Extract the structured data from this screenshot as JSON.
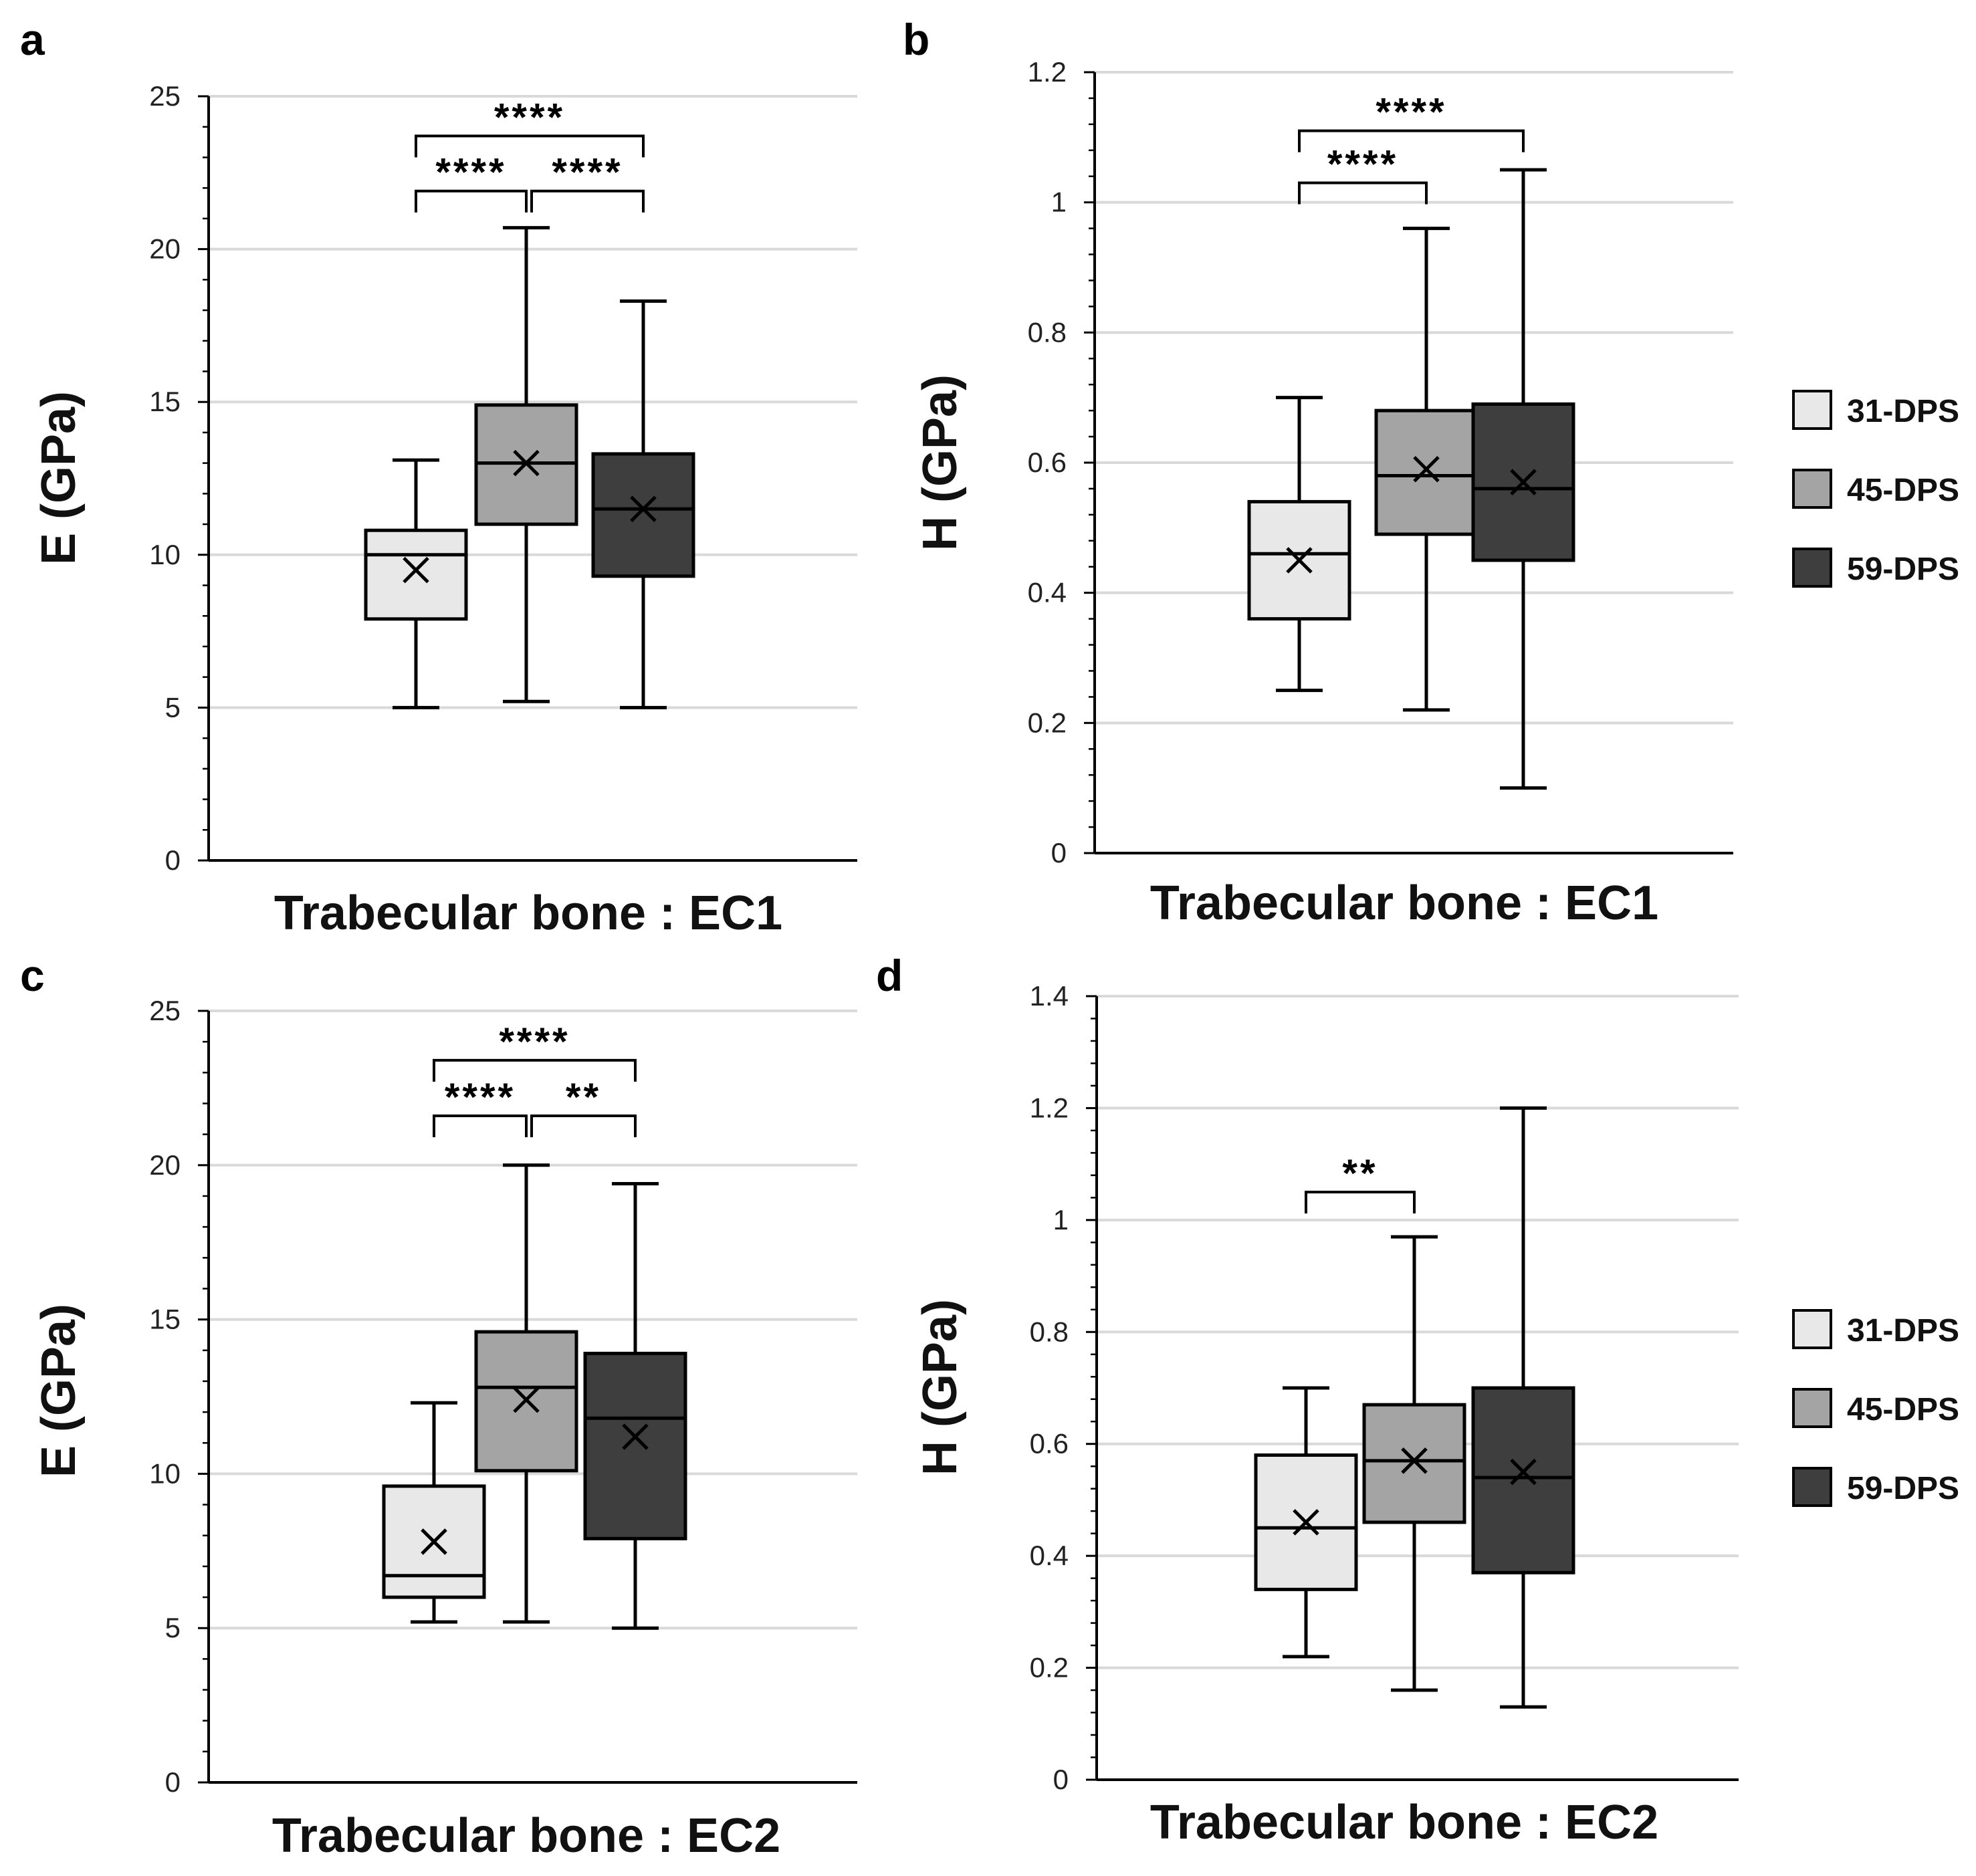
{
  "groups": [
    "31-DPS",
    "45-DPS",
    "59-DPS"
  ],
  "colors": {
    "31-DPS": "#e8e8e8",
    "45-DPS": "#a4a4a4",
    "59-DPS": "#3e3e3e",
    "grid": "#d9d9d9",
    "axis": "#000000"
  },
  "chart_data": [
    {
      "panel": "a",
      "type": "box",
      "xlabel": "Trabecular bone : EC1",
      "ylabel": "E (GPa)",
      "ylim": [
        0,
        25
      ],
      "yticks": [
        "0",
        "5",
        "10",
        "15",
        "20",
        "25"
      ],
      "grid": true,
      "minor_ticks": 5,
      "legend": null,
      "series": [
        {
          "name": "31-DPS",
          "min": 5.0,
          "q1": 7.9,
          "median": 10.0,
          "q3": 10.8,
          "max": 13.1,
          "mean": 9.5
        },
        {
          "name": "45-DPS",
          "min": 5.2,
          "q1": 11.0,
          "median": 13.0,
          "q3": 14.9,
          "max": 20.7,
          "mean": 13.0
        },
        {
          "name": "59-DPS",
          "min": 5.0,
          "q1": 9.3,
          "median": 11.5,
          "q3": 13.3,
          "max": 18.3,
          "mean": 11.5
        }
      ],
      "significance": [
        {
          "from": 0,
          "to": 2,
          "y": 23.7,
          "label": "****"
        },
        {
          "from": 0,
          "to": 1,
          "y": 21.9,
          "label": "****"
        },
        {
          "from": 1,
          "to": 2,
          "y": 21.9,
          "label": "****"
        }
      ]
    },
    {
      "panel": "b",
      "type": "box",
      "xlabel": "Trabecular bone : EC1",
      "ylabel": "H (GPa)",
      "ylim": [
        0,
        1.2
      ],
      "yticks": [
        "0",
        "0.2",
        "0.4",
        "0.6",
        "0.8",
        "1",
        "1.2"
      ],
      "grid": true,
      "minor_ticks": 5,
      "legend": "right",
      "series": [
        {
          "name": "31-DPS",
          "min": 0.25,
          "q1": 0.36,
          "median": 0.46,
          "q3": 0.54,
          "max": 0.7,
          "mean": 0.45
        },
        {
          "name": "45-DPS",
          "min": 0.22,
          "q1": 0.49,
          "median": 0.58,
          "q3": 0.68,
          "max": 0.96,
          "mean": 0.59
        },
        {
          "name": "59-DPS",
          "min": 0.1,
          "q1": 0.45,
          "median": 0.56,
          "q3": 0.69,
          "max": 1.05,
          "mean": 0.57
        }
      ],
      "significance": [
        {
          "from": 0,
          "to": 2,
          "y": 1.11,
          "label": "****"
        },
        {
          "from": 0,
          "to": 1,
          "y": 1.03,
          "label": "****"
        }
      ]
    },
    {
      "panel": "c",
      "type": "box",
      "xlabel": "Trabecular bone : EC2",
      "ylabel": "E (GPa)",
      "ylim": [
        0,
        25
      ],
      "yticks": [
        "0",
        "5",
        "10",
        "15",
        "20",
        "25"
      ],
      "grid": true,
      "minor_ticks": 5,
      "legend": null,
      "series": [
        {
          "name": "31-DPS",
          "min": 5.2,
          "q1": 6.0,
          "median": 6.7,
          "q3": 9.6,
          "max": 12.3,
          "mean": 7.8
        },
        {
          "name": "45-DPS",
          "min": 5.2,
          "q1": 10.1,
          "median": 12.8,
          "q3": 14.6,
          "max": 20.0,
          "mean": 12.4
        },
        {
          "name": "59-DPS",
          "min": 5.0,
          "q1": 7.9,
          "median": 11.8,
          "q3": 13.9,
          "max": 19.4,
          "mean": 11.2
        }
      ],
      "significance": [
        {
          "from": 0,
          "to": 2,
          "y": 23.4,
          "label": "****"
        },
        {
          "from": 0,
          "to": 1,
          "y": 21.6,
          "label": "****"
        },
        {
          "from": 1,
          "to": 2,
          "y": 21.6,
          "label": "**"
        }
      ]
    },
    {
      "panel": "d",
      "type": "box",
      "xlabel": "Trabecular bone : EC2",
      "ylabel": "H (GPa)",
      "ylim": [
        0,
        1.4
      ],
      "yticks": [
        "0",
        "0.2",
        "0.4",
        "0.6",
        "0.8",
        "1",
        "1.2",
        "1.4"
      ],
      "grid": true,
      "minor_ticks": 5,
      "legend": "right",
      "series": [
        {
          "name": "31-DPS",
          "min": 0.22,
          "q1": 0.34,
          "median": 0.45,
          "q3": 0.58,
          "max": 0.7,
          "mean": 0.46
        },
        {
          "name": "45-DPS",
          "min": 0.16,
          "q1": 0.46,
          "median": 0.57,
          "q3": 0.67,
          "max": 0.97,
          "mean": 0.57
        },
        {
          "name": "59-DPS",
          "min": 0.13,
          "q1": 0.37,
          "median": 0.54,
          "q3": 0.7,
          "max": 1.2,
          "mean": 0.55
        }
      ],
      "significance": [
        {
          "from": 0,
          "to": 1,
          "y": 1.05,
          "label": "**"
        }
      ]
    }
  ]
}
